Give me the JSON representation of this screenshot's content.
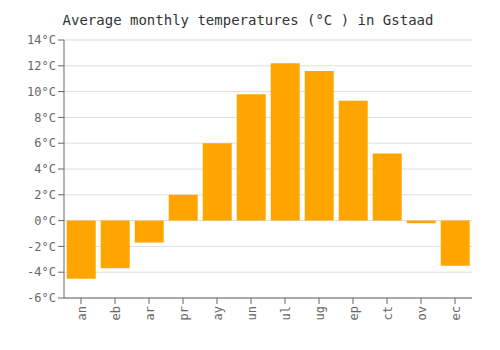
{
  "chart_data": {
    "type": "bar",
    "title": "Average monthly temperatures (°C ) in Gstaad",
    "categories": [
      "an",
      "eb",
      "ar",
      "pr",
      "ay",
      "un",
      "ul",
      "ug",
      "ep",
      "ct",
      "ov",
      "ec"
    ],
    "values": [
      -4.5,
      -3.7,
      -1.7,
      2.0,
      6.0,
      9.8,
      12.2,
      11.6,
      9.3,
      5.2,
      -0.2,
      -3.5
    ],
    "color": "#FFA500",
    "ylim": [
      -6,
      14
    ],
    "yticks": [
      {
        "value": -6,
        "label": "-6°C"
      },
      {
        "value": -4,
        "label": "-4°C"
      },
      {
        "value": -2,
        "label": "-2°C"
      },
      {
        "value": 0,
        "label": "0°C"
      },
      {
        "value": 2,
        "label": "2°C"
      },
      {
        "value": 4,
        "label": "4°C"
      },
      {
        "value": 6,
        "label": "6°C"
      },
      {
        "value": 8,
        "label": "8°C"
      },
      {
        "value": 10,
        "label": "10°C"
      },
      {
        "value": 12,
        "label": "12°C"
      },
      {
        "value": 14,
        "label": "14°C"
      }
    ],
    "grid": true
  }
}
